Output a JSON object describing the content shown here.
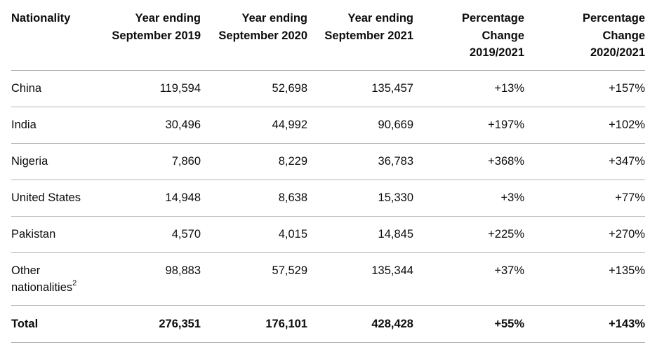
{
  "table": {
    "headers": [
      {
        "lines": [
          "Nationality"
        ]
      },
      {
        "lines": [
          "Year ending",
          "September 2019"
        ]
      },
      {
        "lines": [
          "Year ending",
          "September 2020"
        ]
      },
      {
        "lines": [
          "Year ending",
          "September 2021"
        ]
      },
      {
        "lines": [
          "Percentage",
          "Change",
          "2019/2021"
        ]
      },
      {
        "lines": [
          "Percentage",
          "Change",
          "2020/2021"
        ]
      }
    ],
    "rows": [
      {
        "nationality": "China",
        "y2019": "119,594",
        "y2020": "52,698",
        "y2021": "135,457",
        "pct_2019_2021": "+13%",
        "pct_2020_2021": "+157%"
      },
      {
        "nationality": "India",
        "y2019": "30,496",
        "y2020": "44,992",
        "y2021": "90,669",
        "pct_2019_2021": "+197%",
        "pct_2020_2021": "+102%"
      },
      {
        "nationality": "Nigeria",
        "y2019": "7,860",
        "y2020": "8,229",
        "y2021": "36,783",
        "pct_2019_2021": "+368%",
        "pct_2020_2021": "+347%"
      },
      {
        "nationality": "United States",
        "y2019": "14,948",
        "y2020": "8,638",
        "y2021": "15,330",
        "pct_2019_2021": "+3%",
        "pct_2020_2021": "+77%"
      },
      {
        "nationality": "Pakistan",
        "y2019": "4,570",
        "y2020": "4,015",
        "y2021": "14,845",
        "pct_2019_2021": "+225%",
        "pct_2020_2021": "+270%"
      },
      {
        "nationality_line1": "Other",
        "nationality_line2": "nationalities",
        "footnote": "2",
        "y2019": "98,883",
        "y2020": "57,529",
        "y2021": "135,344",
        "pct_2019_2021": "+37%",
        "pct_2020_2021": "+135%"
      }
    ],
    "total": {
      "nationality": "Total",
      "y2019": "276,351",
      "y2020": "176,101",
      "y2021": "428,428",
      "pct_2019_2021": "+55%",
      "pct_2020_2021": "+143%"
    }
  }
}
